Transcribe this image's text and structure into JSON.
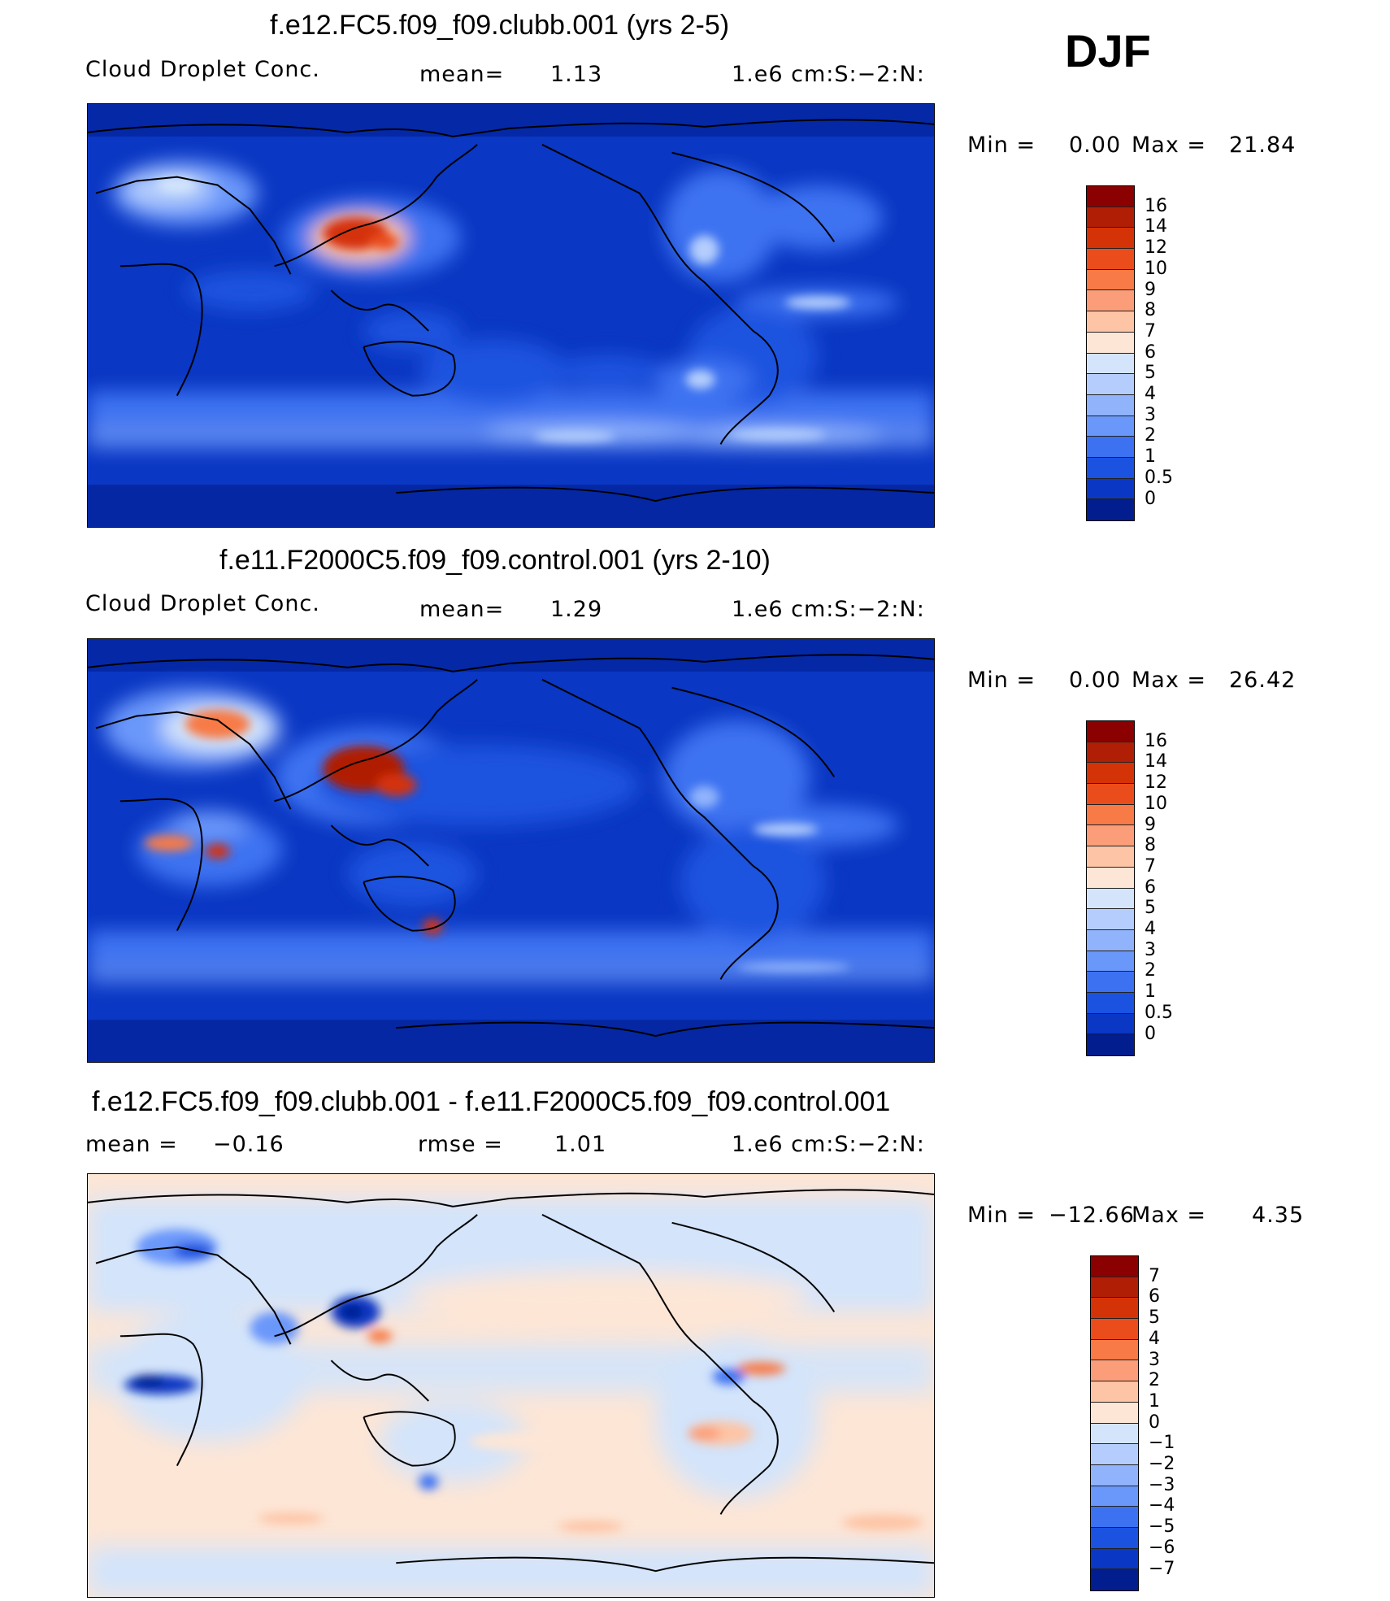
{
  "season": "DJF",
  "panels": [
    {
      "title": "f.e12.FC5.f09_f09.clubb.001 (yrs 2-5)",
      "left_label": "Cloud Droplet Conc.",
      "center_label": "mean=",
      "center_value": "1.13",
      "units": "1.e6 cm:S:−2:N:",
      "minmax": {
        "min_label": "Min =",
        "min": "0.00",
        "max_label": "Max =",
        "max": "21.84"
      },
      "levels": [
        "16",
        "14",
        "12",
        "10",
        "9",
        "8",
        "7",
        "6",
        "5",
        "4",
        "3",
        "2",
        "1",
        "0.5",
        "0"
      ],
      "colors": [
        "#8b0000",
        "#b01e05",
        "#d43308",
        "#ea4d1b",
        "#f77a47",
        "#fb9d78",
        "#fdc4a5",
        "#fde6d6",
        "#d3e4fb",
        "#b4cdfc",
        "#90b3fc",
        "#6a97fa",
        "#3c72f1",
        "#1b52df",
        "#0a37c3",
        "#021d8e"
      ]
    },
    {
      "title": "f.e11.F2000C5.f09_f09.control.001 (yrs 2-10)",
      "left_label": "Cloud Droplet Conc.",
      "center_label": "mean=",
      "center_value": "1.29",
      "units": "1.e6 cm:S:−2:N:",
      "minmax": {
        "min_label": "Min =",
        "min": "0.00",
        "max_label": "Max =",
        "max": "26.42"
      },
      "levels": [
        "16",
        "14",
        "12",
        "10",
        "9",
        "8",
        "7",
        "6",
        "5",
        "4",
        "3",
        "2",
        "1",
        "0.5",
        "0"
      ],
      "colors": [
        "#8b0000",
        "#b01e05",
        "#d43308",
        "#ea4d1b",
        "#f77a47",
        "#fb9d78",
        "#fdc4a5",
        "#fde6d6",
        "#d3e4fb",
        "#b4cdfc",
        "#90b3fc",
        "#6a97fa",
        "#3c72f1",
        "#1b52df",
        "#0a37c3",
        "#021d8e"
      ]
    },
    {
      "title": "f.e12.FC5.f09_f09.clubb.001 - f.e11.F2000C5.f09_f09.control.001",
      "left_label": "mean =",
      "left_value": "−0.16",
      "center_label": "rmse =",
      "center_value": "1.01",
      "units": "1.e6 cm:S:−2:N:",
      "minmax": {
        "min_label": "Min =",
        "min": "−12.66",
        "max_label": "Max =",
        "max": "4.35"
      },
      "levels": [
        "7",
        "6",
        "5",
        "4",
        "3",
        "2",
        "1",
        "0",
        "−1",
        "−2",
        "−3",
        "−4",
        "−5",
        "−6",
        "−7"
      ],
      "colors": [
        "#8b0000",
        "#b01e05",
        "#d43308",
        "#ea4d1b",
        "#f77a47",
        "#fb9d78",
        "#fdc4a5",
        "#fde6d6",
        "#d3e4fb",
        "#b4cdfc",
        "#90b3fc",
        "#6a97fa",
        "#3c72f1",
        "#1b52df",
        "#0a37c3",
        "#021d8e"
      ]
    }
  ]
}
